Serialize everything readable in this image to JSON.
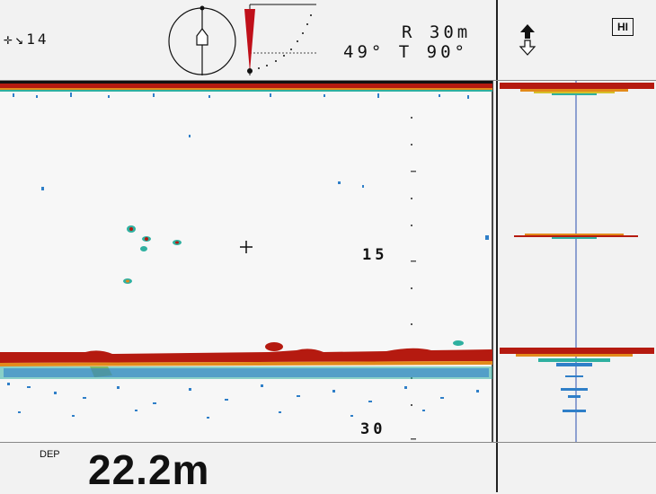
{
  "header": {
    "vessel_indicator": "✛↘14",
    "range_text": "R 30m",
    "tilt_text": "49° T 90°"
  },
  "sidebar": {
    "mode_badge": "HI",
    "direction_icon": "up-down-arrow-icon"
  },
  "echogram": {
    "scale_labels": [
      "15",
      "30"
    ],
    "cursor_icon": "crosshair-icon"
  },
  "footer": {
    "depth_tag": "DEP",
    "depth_value": "22.2m"
  },
  "colors": {
    "background": "#f2f2f2",
    "echo_strong": "#b51a10",
    "echo_medium": "#e38a1a",
    "echo_light": "#2f7fc8",
    "echo_weak": "#2fb0a0"
  }
}
